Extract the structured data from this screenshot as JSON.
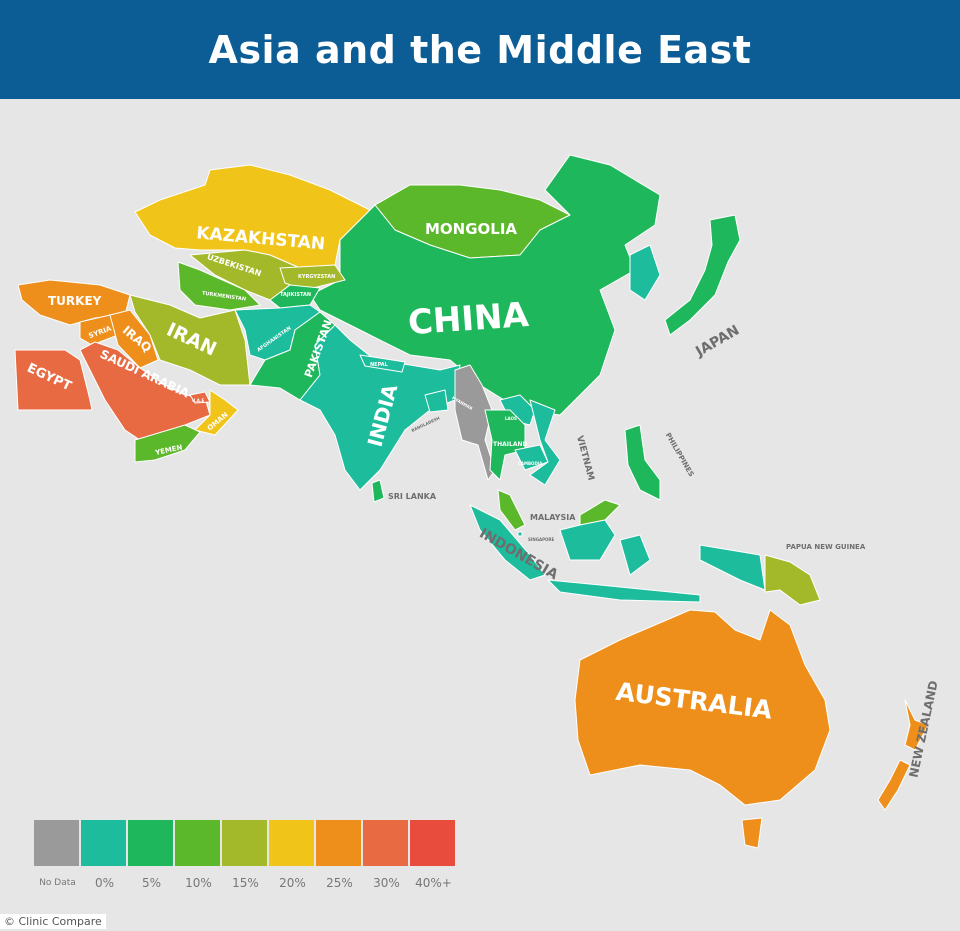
{
  "title": "Asia and the Middle East",
  "credit": "© Clinic Compare",
  "legend": [
    {
      "label": "No Data",
      "color": "#9a9a9a"
    },
    {
      "label": "0%",
      "color": "#1cbc9c"
    },
    {
      "label": "5%",
      "color": "#1fb75c"
    },
    {
      "label": "10%",
      "color": "#5cb82b"
    },
    {
      "label": "15%",
      "color": "#a3b92a"
    },
    {
      "label": "20%",
      "color": "#f0c419"
    },
    {
      "label": "25%",
      "color": "#ee8e1b"
    },
    {
      "label": "30%",
      "color": "#e86a42"
    },
    {
      "label": "40%+",
      "color": "#e74c3c"
    }
  ],
  "countries": {
    "kazakhstan": {
      "name": "KAZAKHSTAN",
      "category": "20%"
    },
    "mongolia": {
      "name": "MONGOLIA",
      "category": "10%"
    },
    "china": {
      "name": "CHINA",
      "category": "5%"
    },
    "uzbekistan": {
      "name": "UZBEKISTAN",
      "category": "15%"
    },
    "kyrgyzstan": {
      "name": "KYRGYZSTAN",
      "category": "15%"
    },
    "turkmenistan": {
      "name": "TURKMENISTAN",
      "category": "10%"
    },
    "tajikistan": {
      "name": "TAJIKISTAN",
      "category": "5%"
    },
    "turkey": {
      "name": "TURKEY",
      "category": "25%"
    },
    "syria": {
      "name": "SYRIA",
      "category": "25%"
    },
    "iraq": {
      "name": "IRAQ",
      "category": "25%"
    },
    "iran": {
      "name": "IRAN",
      "category": "15%"
    },
    "afghanistan": {
      "name": "AFGHANISTAN",
      "category": "0%"
    },
    "pakistan": {
      "name": "PAKISTAN",
      "category": "5%"
    },
    "egypt": {
      "name": "EGYPT",
      "category": "30%"
    },
    "saudi_arabia": {
      "name": "SAUDI ARABIA",
      "category": "30%"
    },
    "uae": {
      "name": "U.A.E",
      "category": "30%"
    },
    "oman": {
      "name": "OMAN",
      "category": "20%"
    },
    "yemen": {
      "name": "YEMEN",
      "category": "10%"
    },
    "india": {
      "name": "INDIA",
      "category": "0%"
    },
    "nepal": {
      "name": "NEPAL",
      "category": "0%"
    },
    "bangladesh": {
      "name": "BANGLADESH",
      "category": "0%"
    },
    "myanmar": {
      "name": "MYANMAR",
      "category": "No Data"
    },
    "laos": {
      "name": "LAOS",
      "category": "0%"
    },
    "thailand": {
      "name": "THAILAND",
      "category": "5%"
    },
    "cambodia": {
      "name": "CAMBODIA",
      "category": "0%"
    },
    "vietnam": {
      "name": "VIETNAM",
      "category": "0%"
    },
    "sri_lanka": {
      "name": "SRI LANKA",
      "category": "5%"
    },
    "malaysia": {
      "name": "MALAYSIA",
      "category": "10%"
    },
    "singapore": {
      "name": "SINGAPORE",
      "category": "0%"
    },
    "indonesia": {
      "name": "INDONESIA",
      "category": "0%"
    },
    "philippines": {
      "name": "PHILIPPINES",
      "category": "5%"
    },
    "japan": {
      "name": "JAPAN",
      "category": "5%"
    },
    "korea": {
      "category": "0%"
    },
    "papua_new_guinea": {
      "name": "PAPUA NEW GUINEA",
      "category": "15%"
    },
    "australia": {
      "name": "AUSTRALIA",
      "category": "25%"
    },
    "new_zealand": {
      "name": "NEW ZEALAND",
      "category": "25%"
    }
  }
}
